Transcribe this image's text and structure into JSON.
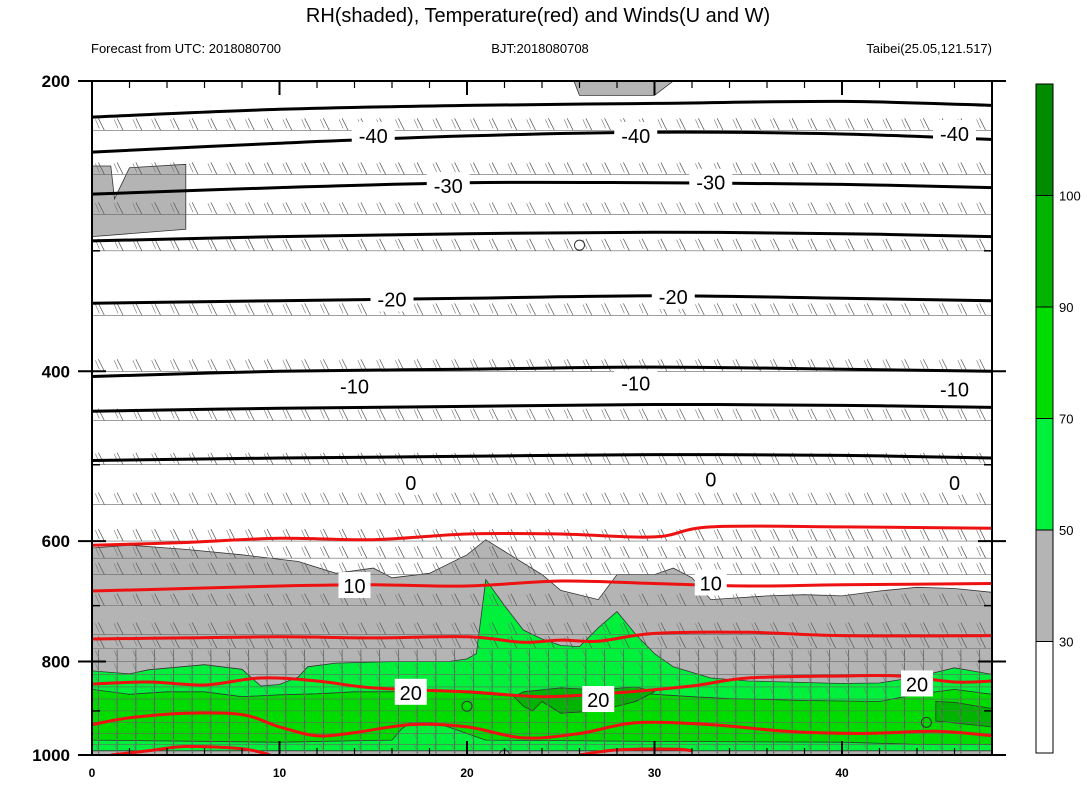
{
  "title": "RH(shaded), Temperature(red) and Winds(U and W)",
  "header": {
    "left": "Forecast from UTC: 2018080700",
    "center": "BJT:2018080708",
    "right": "Taibei(25.05,121.517)"
  },
  "chart_data": {
    "type": "heatmap",
    "title": "RH(shaded), Temperature(red) and Winds(U and W)",
    "xlabel": "",
    "ylabel": "",
    "x_range": [
      0,
      48
    ],
    "y_range": [
      200,
      1000
    ],
    "y_scale": "log-pressure (inverted)",
    "x_ticks": [
      "0",
      "10",
      "20",
      "30",
      "40"
    ],
    "y_ticks": [
      "200",
      "400",
      "600",
      "800",
      "1000"
    ],
    "colorbar": {
      "levels": [
        30,
        50,
        70,
        90,
        100
      ],
      "labels": [
        "30",
        "50",
        "70",
        "90",
        "100"
      ],
      "colors": [
        "#ffffff",
        "#b4b4b4",
        "#00f03c",
        "#00dc00",
        "#00b400",
        "#008c00"
      ],
      "placement": "right"
    },
    "rh_regions": [
      {
        "level": "30-50",
        "color": "#b4b4b4",
        "polygon": [
          [
            0,
            610
          ],
          [
            2,
            606
          ],
          [
            5,
            612
          ],
          [
            8,
            620
          ],
          [
            11,
            630
          ],
          [
            13,
            648
          ],
          [
            15,
            640
          ],
          [
            16,
            655
          ],
          [
            18,
            648
          ],
          [
            20,
            620
          ],
          [
            21,
            598
          ],
          [
            22,
            615
          ],
          [
            24,
            650
          ],
          [
            25,
            675
          ],
          [
            27,
            690
          ],
          [
            28,
            650
          ],
          [
            30,
            650
          ],
          [
            31,
            640
          ],
          [
            32,
            655
          ],
          [
            33,
            690
          ],
          [
            34,
            688
          ],
          [
            36,
            684
          ],
          [
            38,
            682
          ],
          [
            40,
            684
          ],
          [
            42,
            676
          ],
          [
            44,
            670
          ],
          [
            46,
            672
          ],
          [
            48,
            678
          ],
          [
            48,
            1000
          ],
          [
            0,
            1000
          ]
        ]
      },
      {
        "level": "30-50",
        "color": "#b4b4b4",
        "polygon": [
          [
            0,
            245
          ],
          [
            1,
            245
          ],
          [
            1.2,
            265
          ],
          [
            2,
            246
          ],
          [
            5,
            244
          ],
          [
            5,
            285
          ],
          [
            0,
            290
          ]
        ]
      },
      {
        "level": "30-50",
        "color": "#b4b4b4",
        "polygon": [
          [
            25.7,
            200
          ],
          [
            31,
            200
          ],
          [
            30,
            207
          ],
          [
            26,
            207
          ]
        ]
      },
      {
        "level": "50-70",
        "color": "#00f03c",
        "polygon": [
          [
            0,
            818
          ],
          [
            2,
            824
          ],
          [
            3,
            816
          ],
          [
            6,
            806
          ],
          [
            8,
            815
          ],
          [
            9,
            848
          ],
          [
            10,
            845
          ],
          [
            11,
            830
          ],
          [
            11.5,
            810
          ],
          [
            13,
            803
          ],
          [
            16,
            800
          ],
          [
            19,
            800
          ],
          [
            20,
            795
          ],
          [
            20.5,
            785
          ],
          [
            21,
            658
          ],
          [
            22,
            700
          ],
          [
            23,
            742
          ],
          [
            24,
            758
          ],
          [
            25,
            770
          ],
          [
            26,
            772
          ],
          [
            27,
            738
          ],
          [
            28,
            710
          ],
          [
            29,
            750
          ],
          [
            30,
            785
          ],
          [
            31,
            810
          ],
          [
            33,
            832
          ],
          [
            35,
            838
          ],
          [
            37,
            840
          ],
          [
            40,
            843
          ],
          [
            42,
            842
          ],
          [
            44,
            830
          ],
          [
            46,
            812
          ],
          [
            48,
            825
          ],
          [
            48,
            990
          ],
          [
            0,
            990
          ]
        ]
      },
      {
        "level": "70-90",
        "color": "#00dc00",
        "polygon": [
          [
            0,
            855
          ],
          [
            2,
            865
          ],
          [
            4,
            860
          ],
          [
            6,
            860
          ],
          [
            8,
            870
          ],
          [
            10,
            866
          ],
          [
            12,
            864
          ],
          [
            14,
            860
          ],
          [
            16,
            860
          ],
          [
            18,
            855
          ],
          [
            20,
            862
          ],
          [
            22,
            868
          ],
          [
            24,
            862
          ],
          [
            26,
            860
          ],
          [
            28,
            858
          ],
          [
            30,
            865
          ],
          [
            32,
            870
          ],
          [
            34,
            874
          ],
          [
            38,
            878
          ],
          [
            42,
            880
          ],
          [
            44,
            865
          ],
          [
            46,
            855
          ],
          [
            48,
            865
          ],
          [
            48,
            975
          ],
          [
            44,
            975
          ],
          [
            40,
            970
          ],
          [
            30,
            968
          ],
          [
            24,
            966
          ],
          [
            21,
            965
          ],
          [
            20,
            950
          ],
          [
            19,
            935
          ],
          [
            18,
            925
          ],
          [
            17,
            925
          ],
          [
            16.5,
            940
          ],
          [
            16,
            965
          ],
          [
            10,
            970
          ],
          [
            0,
            965
          ]
        ]
      },
      {
        "level": "90-100",
        "color": "#00b400",
        "polygon": [
          [
            22.5,
            870
          ],
          [
            23,
            860
          ],
          [
            25,
            852
          ],
          [
            27,
            856
          ],
          [
            29,
            850
          ],
          [
            30,
            860
          ],
          [
            29,
            880
          ],
          [
            27,
            900
          ],
          [
            25,
            905
          ],
          [
            24,
            880
          ],
          [
            23.5,
            900
          ],
          [
            23,
            890
          ]
        ]
      },
      {
        "level": "90-100",
        "color": "#00b400",
        "polygon": [
          [
            45,
            880
          ],
          [
            46,
            882
          ],
          [
            48,
            895
          ],
          [
            48,
            935
          ],
          [
            45,
            922
          ]
        ]
      }
    ],
    "temperature_contours_black": [
      {
        "label": "-40",
        "points": [
          [
            0,
            218
          ],
          [
            10,
            214
          ],
          [
            20,
            212
          ],
          [
            30,
            211
          ],
          [
            40,
            210
          ],
          [
            48,
            212
          ]
        ]
      },
      {
        "label": "-40",
        "points": [
          [
            0,
            237
          ],
          [
            10,
            232
          ],
          [
            20,
            228
          ],
          [
            30,
            226
          ],
          [
            40,
            227
          ],
          [
            48,
            230
          ]
        ]
      },
      {
        "label": "-30",
        "points": [
          [
            0,
            262
          ],
          [
            10,
            258
          ],
          [
            20,
            255
          ],
          [
            30,
            255
          ],
          [
            40,
            256
          ],
          [
            48,
            258
          ]
        ]
      },
      {
        "label": "-30",
        "points": [
          [
            0,
            293
          ],
          [
            10,
            290
          ],
          [
            20,
            288
          ],
          [
            30,
            287
          ],
          [
            40,
            288
          ],
          [
            48,
            290
          ]
        ]
      },
      {
        "label": "-20",
        "points": [
          [
            0,
            340
          ],
          [
            10,
            338
          ],
          [
            20,
            336
          ],
          [
            30,
            334
          ],
          [
            40,
            336
          ],
          [
            48,
            338
          ]
        ]
      },
      {
        "label": "-10",
        "points": [
          [
            0,
            405
          ],
          [
            10,
            400
          ],
          [
            20,
            398
          ],
          [
            30,
            396
          ],
          [
            40,
            398
          ],
          [
            48,
            400
          ]
        ]
      },
      {
        "label": "-10",
        "points": [
          [
            0,
            440
          ],
          [
            10,
            437
          ],
          [
            20,
            435
          ],
          [
            30,
            433
          ],
          [
            40,
            434
          ],
          [
            48,
            436
          ]
        ]
      },
      {
        "label": "0",
        "points": [
          [
            0,
            495
          ],
          [
            10,
            492
          ],
          [
            20,
            490
          ],
          [
            30,
            488
          ],
          [
            40,
            489
          ],
          [
            48,
            492
          ]
        ]
      }
    ],
    "temperature_contours_red": [
      {
        "label": "10",
        "points": [
          [
            0,
            606
          ],
          [
            5,
            602
          ],
          [
            10,
            596
          ],
          [
            15,
            598
          ],
          [
            20,
            590
          ],
          [
            25,
            590
          ],
          [
            30,
            594
          ],
          [
            33,
            580
          ],
          [
            40,
            580
          ],
          [
            48,
            582
          ]
        ]
      },
      {
        "label": "10",
        "points": [
          [
            0,
            676
          ],
          [
            5,
            672
          ],
          [
            10,
            668
          ],
          [
            15,
            666
          ],
          [
            20,
            668
          ],
          [
            25,
            660
          ],
          [
            30,
            664
          ],
          [
            35,
            668
          ],
          [
            40,
            666
          ],
          [
            48,
            664
          ]
        ]
      },
      {
        "label": "20",
        "points": [
          [
            0,
            758
          ],
          [
            5,
            756
          ],
          [
            10,
            754
          ],
          [
            15,
            756
          ],
          [
            20,
            754
          ],
          [
            23,
            764
          ],
          [
            25,
            760
          ],
          [
            27,
            762
          ],
          [
            30,
            748
          ],
          [
            35,
            746
          ],
          [
            40,
            752
          ],
          [
            48,
            752
          ]
        ]
      },
      {
        "label": "20",
        "points": [
          [
            0,
            844
          ],
          [
            3,
            840
          ],
          [
            6,
            846
          ],
          [
            9,
            832
          ],
          [
            12,
            838
          ],
          [
            15,
            852
          ],
          [
            20,
            860
          ],
          [
            24,
            870
          ],
          [
            28,
            862
          ],
          [
            32,
            848
          ],
          [
            35,
            832
          ],
          [
            40,
            828
          ],
          [
            43,
            828
          ],
          [
            46,
            840
          ],
          [
            48,
            838
          ]
        ]
      },
      {
        "label": "20",
        "points": [
          [
            0,
            930
          ],
          [
            2,
            915
          ],
          [
            5,
            905
          ],
          [
            8,
            908
          ],
          [
            10,
            935
          ],
          [
            12,
            955
          ],
          [
            14,
            948
          ],
          [
            17,
            930
          ],
          [
            20,
            935
          ],
          [
            23,
            960
          ],
          [
            26,
            950
          ],
          [
            29,
            926
          ],
          [
            33,
            930
          ],
          [
            37,
            945
          ],
          [
            41,
            950
          ],
          [
            45,
            945
          ],
          [
            48,
            955
          ]
        ]
      },
      {
        "label": "20",
        "points": [
          [
            1,
            1000
          ],
          [
            3,
            990
          ],
          [
            5,
            980
          ],
          [
            8,
            985
          ],
          [
            9.5,
            1000
          ]
        ]
      },
      {
        "label": "20",
        "points": [
          [
            26,
            1000
          ],
          [
            28,
            988
          ],
          [
            31,
            986
          ],
          [
            32,
            990
          ]
        ]
      }
    ],
    "contour_labels": [
      {
        "text": "-40",
        "x": 15,
        "y": 228
      },
      {
        "text": "-40",
        "x": 29,
        "y": 228
      },
      {
        "text": "-40",
        "x": 46,
        "y": 227
      },
      {
        "text": "-30",
        "x": 19,
        "y": 257
      },
      {
        "text": "-30",
        "x": 33,
        "y": 255
      },
      {
        "text": "-20",
        "x": 16,
        "y": 337
      },
      {
        "text": "-20",
        "x": 31,
        "y": 335
      },
      {
        "text": "-10",
        "x": 14,
        "y": 415
      },
      {
        "text": "-10",
        "x": 29,
        "y": 412
      },
      {
        "text": "-10",
        "x": 46,
        "y": 418
      },
      {
        "text": "0",
        "x": 17,
        "y": 522
      },
      {
        "text": "0",
        "x": 33,
        "y": 518
      },
      {
        "text": "0",
        "x": 46,
        "y": 522
      },
      {
        "text": "10",
        "x": 14,
        "y": 668
      },
      {
        "text": "10",
        "x": 33,
        "y": 664
      },
      {
        "text": "20",
        "x": 17,
        "y": 862
      },
      {
        "text": "20",
        "x": 27,
        "y": 877
      },
      {
        "text": "20",
        "x": 44,
        "y": 845
      }
    ],
    "wind_levels": [
      200,
      225,
      250,
      275,
      300,
      350,
      400,
      450,
      500,
      550,
      600,
      625,
      650,
      700,
      750,
      775,
      800,
      825,
      850,
      875,
      900,
      925,
      950,
      975,
      1000
    ],
    "calm_markers": [
      [
        26,
        296
      ],
      [
        20,
        890
      ],
      [
        44.5,
        925
      ],
      [
        22,
        1000
      ]
    ]
  }
}
